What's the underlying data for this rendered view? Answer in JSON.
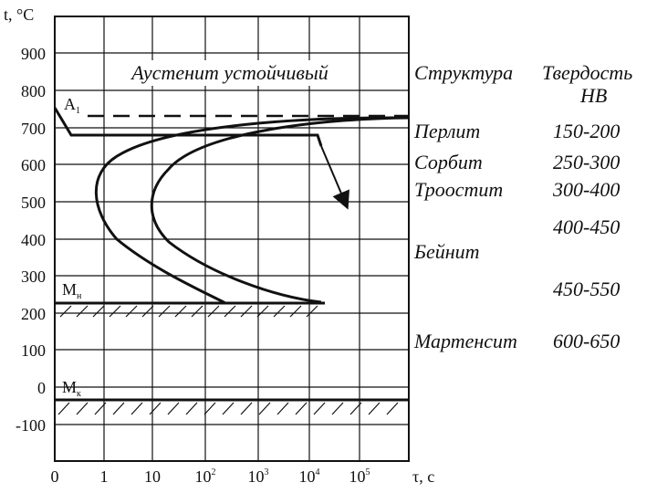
{
  "y_axis": {
    "label": "t, °C",
    "ticks": [
      "900",
      "800",
      "700",
      "600",
      "500",
      "400",
      "300",
      "200",
      "100",
      "0",
      "-100"
    ]
  },
  "x_axis": {
    "label": "τ, с",
    "ticks": [
      "0",
      "1",
      "10",
      "10",
      "10",
      "10",
      "10"
    ],
    "exponents": [
      "",
      "",
      "",
      "2",
      "3",
      "4",
      "5"
    ]
  },
  "region_label": "Аустенит устойчивый",
  "markers": {
    "a1": {
      "base": "A",
      "sub": "1"
    },
    "mn": {
      "base": "M",
      "sub": "н"
    },
    "mk": {
      "base": "M",
      "sub": "к"
    }
  },
  "table": {
    "header_structure": "Структура",
    "header_hardness_1": "Твердость",
    "header_hardness_2": "HB",
    "rows": [
      {
        "structure": "Перлит",
        "hardness": "150-200"
      },
      {
        "structure": "Сорбит",
        "hardness": "250-300"
      },
      {
        "structure": "Троостит",
        "hardness": "300-400"
      },
      {
        "structure": "",
        "hardness": "400-450"
      },
      {
        "structure": "Бейнит",
        "hardness": ""
      },
      {
        "structure": "",
        "hardness": "450-550"
      },
      {
        "structure": "Мартенсит",
        "hardness": "600-650"
      }
    ]
  }
}
